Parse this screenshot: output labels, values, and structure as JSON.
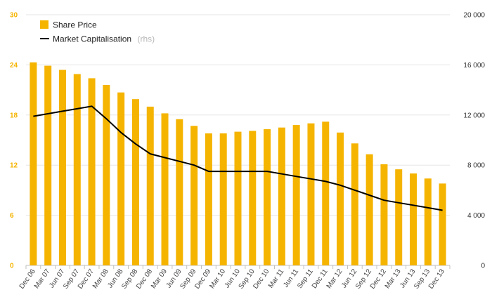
{
  "chart_data": {
    "type": "bar",
    "categories": [
      "Dec 06",
      "Mar 07",
      "Jun 07",
      "Sep 07",
      "Dec 07",
      "Mar 08",
      "Jun 08",
      "Sep 08",
      "Dec 08",
      "Mar 09",
      "Jun 09",
      "Sep 09",
      "Dec 09",
      "Mar 10",
      "Jun 10",
      "Sep 10",
      "Dec 10",
      "Mar 11",
      "Jun 11",
      "Sep 11",
      "Dec 11",
      "Mar 12",
      "Jun 12",
      "Sep 12",
      "Dec 12",
      "Mar 13",
      "Jun 13",
      "Sep 13",
      "Dec 13"
    ],
    "series": [
      {
        "name": "Share Price",
        "type": "bar",
        "axis": "left",
        "color": "#F5B400",
        "values": [
          24.3,
          23.9,
          23.4,
          22.9,
          22.4,
          21.6,
          20.7,
          19.9,
          19.0,
          18.2,
          17.5,
          16.7,
          15.8,
          15.8,
          16.0,
          16.1,
          16.3,
          16.5,
          16.8,
          17.0,
          17.2,
          15.9,
          14.6,
          13.3,
          12.1,
          11.5,
          11.0,
          10.4,
          9.8
        ]
      },
      {
        "name": "Market Capitalisation",
        "name_note": "(rhs)",
        "type": "line",
        "axis": "right",
        "color": "#000000",
        "values": [
          11900,
          12100,
          12300,
          12500,
          12700,
          11700,
          10600,
          9700,
          8900,
          8600,
          8300,
          8000,
          7500,
          7500,
          7500,
          7500,
          7500,
          7300,
          7100,
          6900,
          6700,
          6400,
          6000,
          5600,
          5200,
          5000,
          4800,
          4600,
          4400
        ]
      }
    ],
    "y_left": {
      "min": 0,
      "max": 30,
      "ticks": [
        "0",
        "6",
        "12",
        "18",
        "24",
        "30"
      ],
      "color": "#F5B400"
    },
    "y_right": {
      "min": 0,
      "max": 20000,
      "ticks": [
        "0",
        "4 000",
        "8 000",
        "12 000",
        "16 000",
        "20 000"
      ],
      "color": "#333333"
    },
    "grid": true,
    "legend": "top-left"
  },
  "legend": {
    "share_price": "Share Price",
    "market_cap": "Market Capitalisation",
    "market_cap_note": "(rhs)"
  }
}
